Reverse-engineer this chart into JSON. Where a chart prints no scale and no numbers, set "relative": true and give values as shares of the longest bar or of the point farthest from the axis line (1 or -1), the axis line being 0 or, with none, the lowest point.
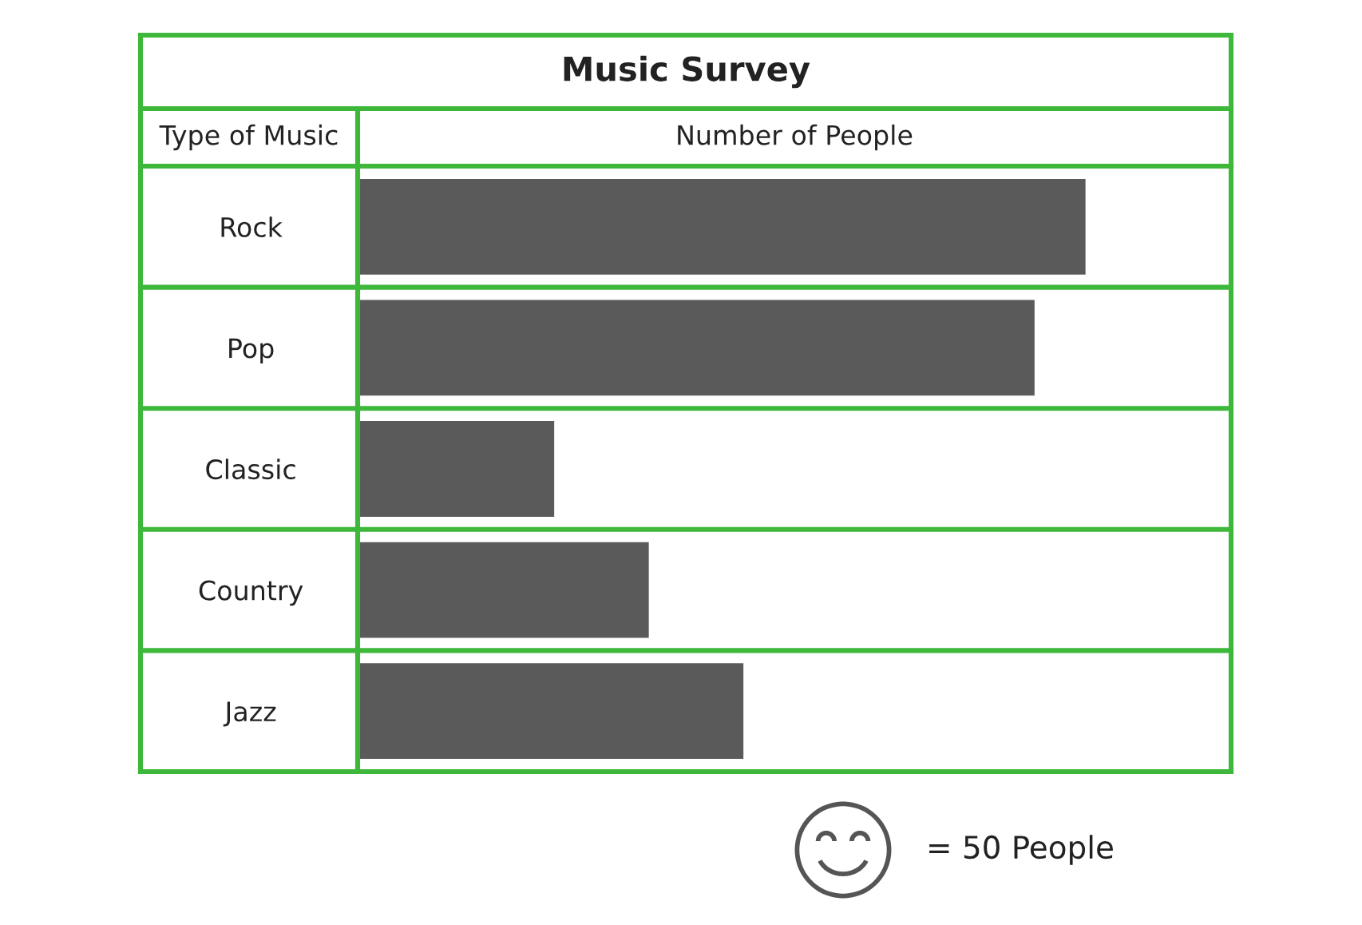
{
  "chart_data": {
    "type": "bar",
    "orientation": "horizontal",
    "relative": true,
    "title": "Music Survey",
    "xlabel": "Number of People",
    "ylabel": "Type of Music",
    "categories": [
      "Rock",
      "Pop",
      "Classic",
      "Country",
      "Jazz"
    ],
    "values": [
      1,
      0.93,
      0.27,
      0.4,
      0.53
    ],
    "color": "#5a5a5a",
    "annotations": [
      "= 50 People"
    ]
  }
}
